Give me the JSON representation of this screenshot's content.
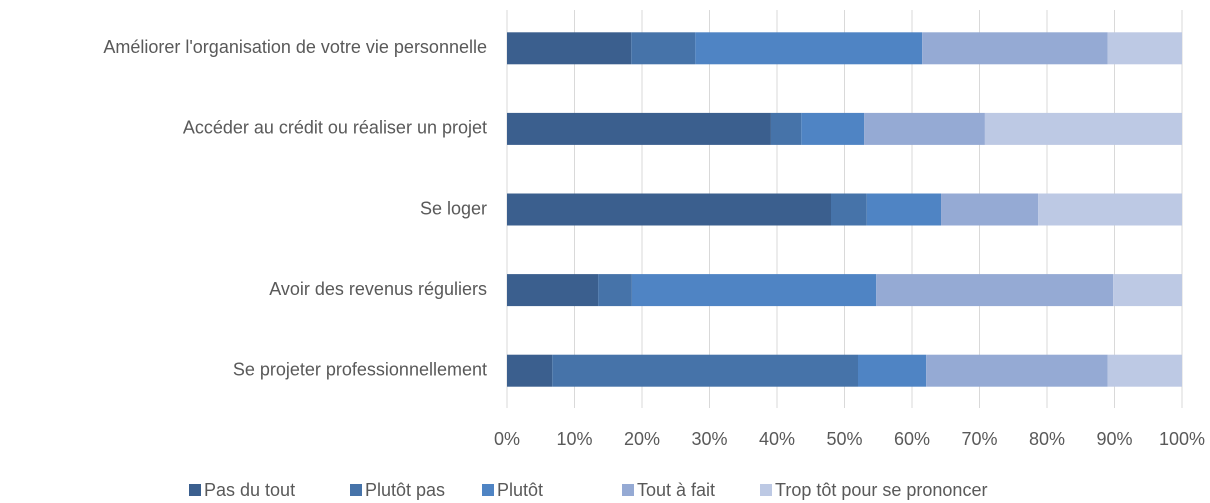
{
  "chart_data": {
    "type": "stacked-barh",
    "categories": [
      "Améliorer l'organisation de votre vie personnelle",
      "Accéder au crédit ou réaliser un projet",
      "Se loger",
      "Avoir des revenus réguliers",
      "Se projeter professionnellement"
    ],
    "series": [
      {
        "name": "Pas du tout",
        "color": "#3b5f8e",
        "values": [
          18.4,
          39.1,
          48.0,
          13.5,
          6.7
        ]
      },
      {
        "name": "Plutôt pas",
        "color": "#4673a9",
        "values": [
          9.5,
          4.5,
          5.3,
          5.0,
          45.3
        ]
      },
      {
        "name": "Plutôt",
        "color": "#4f84c4",
        "values": [
          33.6,
          9.3,
          11.0,
          36.2,
          10.1
        ]
      },
      {
        "name": "Tout à fait",
        "color": "#95aad4",
        "values": [
          27.5,
          17.9,
          14.4,
          35.1,
          26.9
        ]
      },
      {
        "name": "Trop tôt pour se prononcer",
        "color": "#bdc9e4",
        "values": [
          11.0,
          29.2,
          21.3,
          10.2,
          11.0
        ]
      }
    ],
    "xlim": [
      0,
      100
    ],
    "xticks": [
      {
        "value": 0,
        "label": "0%"
      },
      {
        "value": 10,
        "label": "10%"
      },
      {
        "value": 20,
        "label": "20%"
      },
      {
        "value": 30,
        "label": "30%"
      },
      {
        "value": 40,
        "label": "40%"
      },
      {
        "value": 50,
        "label": "50%"
      },
      {
        "value": 60,
        "label": "60%"
      },
      {
        "value": 70,
        "label": "70%"
      },
      {
        "value": 80,
        "label": "80%"
      },
      {
        "value": 90,
        "label": "90%"
      },
      {
        "value": 100,
        "label": "100%"
      }
    ],
    "grid": true
  }
}
